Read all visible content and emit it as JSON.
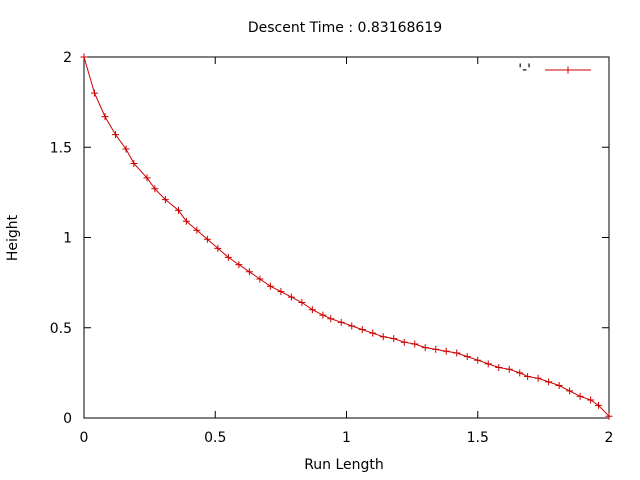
{
  "chart_data": {
    "type": "line",
    "title": "Descent Time : 0.83168619",
    "xlabel": "Run Length",
    "ylabel": "Height",
    "xlim": [
      0,
      2
    ],
    "ylim": [
      0,
      2
    ],
    "x_ticks": [
      "0",
      "0.5",
      "1",
      "1.5",
      "2"
    ],
    "y_ticks": [
      "0",
      "0.5",
      "1",
      "1.5",
      "2"
    ],
    "grid": false,
    "legend_position": "top-right",
    "series": [
      {
        "name": "'-'",
        "color": "#cc0000",
        "marker": "plus",
        "x": [
          0,
          0.04,
          0.08,
          0.12,
          0.16,
          0.19,
          0.24,
          0.27,
          0.31,
          0.36,
          0.39,
          0.43,
          0.47,
          0.51,
          0.55,
          0.59,
          0.63,
          0.67,
          0.71,
          0.75,
          0.79,
          0.83,
          0.87,
          0.91,
          0.94,
          0.98,
          1.02,
          1.06,
          1.1,
          1.14,
          1.18,
          1.22,
          1.26,
          1.3,
          1.34,
          1.38,
          1.42,
          1.46,
          1.5,
          1.54,
          1.58,
          1.62,
          1.66,
          1.69,
          1.73,
          1.77,
          1.81,
          1.85,
          1.89,
          1.93,
          1.96,
          2.0
        ],
        "y": [
          2.0,
          1.8,
          1.67,
          1.57,
          1.49,
          1.41,
          1.33,
          1.27,
          1.21,
          1.15,
          1.09,
          1.04,
          0.99,
          0.94,
          0.89,
          0.85,
          0.81,
          0.77,
          0.73,
          0.7,
          0.67,
          0.64,
          0.6,
          0.57,
          0.55,
          0.53,
          0.51,
          0.49,
          0.47,
          0.45,
          0.44,
          0.42,
          0.41,
          0.39,
          0.38,
          0.37,
          0.36,
          0.34,
          0.32,
          0.3,
          0.28,
          0.27,
          0.25,
          0.23,
          0.22,
          0.2,
          0.18,
          0.15,
          0.12,
          0.1,
          0.07,
          0.01
        ]
      }
    ]
  }
}
